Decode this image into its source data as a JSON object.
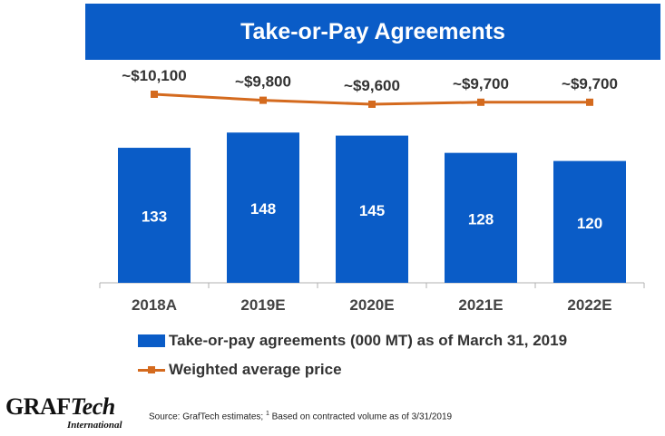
{
  "title": "Take-or-Pay Agreements",
  "chart_data": {
    "type": "bar",
    "categories": [
      "2018A",
      "2019E",
      "2020E",
      "2021E",
      "2022E"
    ],
    "series": [
      {
        "name": "Take-or-pay agreements (000 MT) as of March 31, 2019",
        "type": "bar",
        "values": [
          133,
          148,
          145,
          128,
          120
        ],
        "labels": [
          "133",
          "148",
          "145",
          "128",
          "120"
        ],
        "color": "#0a5cc7"
      },
      {
        "name": "Weighted average price",
        "type": "line",
        "values": [
          10100,
          9800,
          9600,
          9700,
          9700
        ],
        "labels": [
          "~$10,100",
          "~$9,800",
          "~$9,600",
          "~$9,700",
          "~$9,700"
        ],
        "color": "#d46a1e"
      }
    ],
    "legend_position": "bottom",
    "grid": false
  },
  "legend": {
    "bar_label": "Take-or-pay agreements (000 MT) as of March 31, 2019",
    "line_label": "Weighted average price"
  },
  "logo": {
    "name_main": "GRAF",
    "name_italic": "Tech",
    "subtitle": "International"
  },
  "source": {
    "prefix": "Source: GrafTech estimates; ",
    "footnote_mark": "1",
    "suffix": " Based on contracted volume as of 3/31/2019"
  }
}
